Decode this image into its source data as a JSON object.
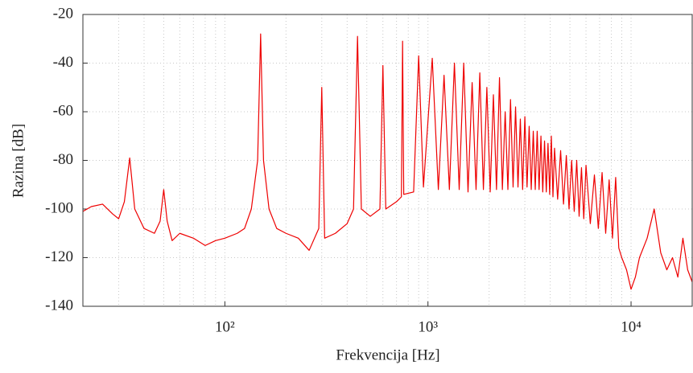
{
  "chart_data": {
    "type": "line",
    "xlabel": "Frekvencija [Hz]",
    "ylabel": "Razina [dB]",
    "xscale": "log",
    "xlim": [
      20,
      20000
    ],
    "ylim": [
      -140,
      -20
    ],
    "xticks": [
      {
        "value": 100,
        "label": "10²"
      },
      {
        "value": 1000,
        "label": "10³"
      },
      {
        "value": 10000,
        "label": "10⁴"
      }
    ],
    "xminorticks": [
      20,
      30,
      40,
      50,
      60,
      70,
      80,
      90,
      200,
      300,
      400,
      500,
      600,
      700,
      800,
      900,
      2000,
      3000,
      4000,
      5000,
      6000,
      7000,
      8000,
      9000
    ],
    "yticks": [
      -140,
      -120,
      -100,
      -80,
      -60,
      -40,
      -20
    ],
    "grid": true,
    "x": [
      20,
      22,
      25,
      28,
      30,
      32,
      34,
      36,
      40,
      45,
      48,
      50,
      52,
      55,
      60,
      70,
      80,
      90,
      100,
      115,
      125,
      135,
      145,
      150,
      155,
      165,
      180,
      200,
      230,
      260,
      290,
      300,
      310,
      350,
      400,
      430,
      450,
      470,
      520,
      580,
      600,
      620,
      700,
      740,
      750,
      760,
      850,
      900,
      950,
      1050,
      1125,
      1200,
      1275,
      1350,
      1425,
      1500,
      1575,
      1650,
      1725,
      1800,
      1875,
      1950,
      2025,
      2100,
      2175,
      2250,
      2325,
      2400,
      2475,
      2550,
      2625,
      2700,
      2775,
      2850,
      2925,
      3000,
      3075,
      3150,
      3225,
      3300,
      3375,
      3450,
      3525,
      3600,
      3675,
      3750,
      3825,
      3900,
      3975,
      4050,
      4125,
      4200,
      4350,
      4500,
      4650,
      4800,
      4950,
      5100,
      5250,
      5400,
      5550,
      5700,
      5850,
      6000,
      6300,
      6600,
      6900,
      7200,
      7500,
      7800,
      8100,
      8400,
      8700,
      9000,
      9500,
      10000,
      10500,
      11000,
      12000,
      13000,
      14000,
      15000,
      16000,
      17000,
      18000,
      19000,
      20000
    ],
    "series": [
      {
        "color": "#ee0000",
        "values": [
          -101,
          -99,
          -98,
          -102,
          -104,
          -97,
          -79,
          -100,
          -108,
          -110,
          -105,
          -92,
          -105,
          -113,
          -110,
          -112,
          -115,
          -113,
          -112,
          -110,
          -108,
          -100,
          -80,
          -28,
          -80,
          -100,
          -108,
          -110,
          -112,
          -117,
          -108,
          -50,
          -112,
          -110,
          -106,
          -100,
          -29,
          -100,
          -103,
          -100,
          -41,
          -100,
          -97,
          -95,
          -31,
          -94,
          -93,
          -37,
          -91,
          -38,
          -92,
          -45,
          -92,
          -40,
          -92,
          -40,
          -93,
          -48,
          -92,
          -44,
          -92,
          -50,
          -93,
          -53,
          -92,
          -46,
          -92,
          -60,
          -92,
          -55,
          -91,
          -58,
          -91,
          -63,
          -92,
          -62,
          -91,
          -66,
          -92,
          -68,
          -92,
          -68,
          -92,
          -70,
          -93,
          -72,
          -93,
          -73,
          -94,
          -70,
          -95,
          -75,
          -96,
          -76,
          -98,
          -78,
          -100,
          -80,
          -101,
          -80,
          -103,
          -83,
          -104,
          -82,
          -106,
          -86,
          -108,
          -85,
          -110,
          -88,
          -112,
          -87,
          -116,
          -120,
          -125,
          -133,
          -128,
          -120,
          -112,
          -100,
          -118,
          -125,
          -120,
          -128,
          -112,
          -125,
          -130
        ]
      }
    ]
  }
}
